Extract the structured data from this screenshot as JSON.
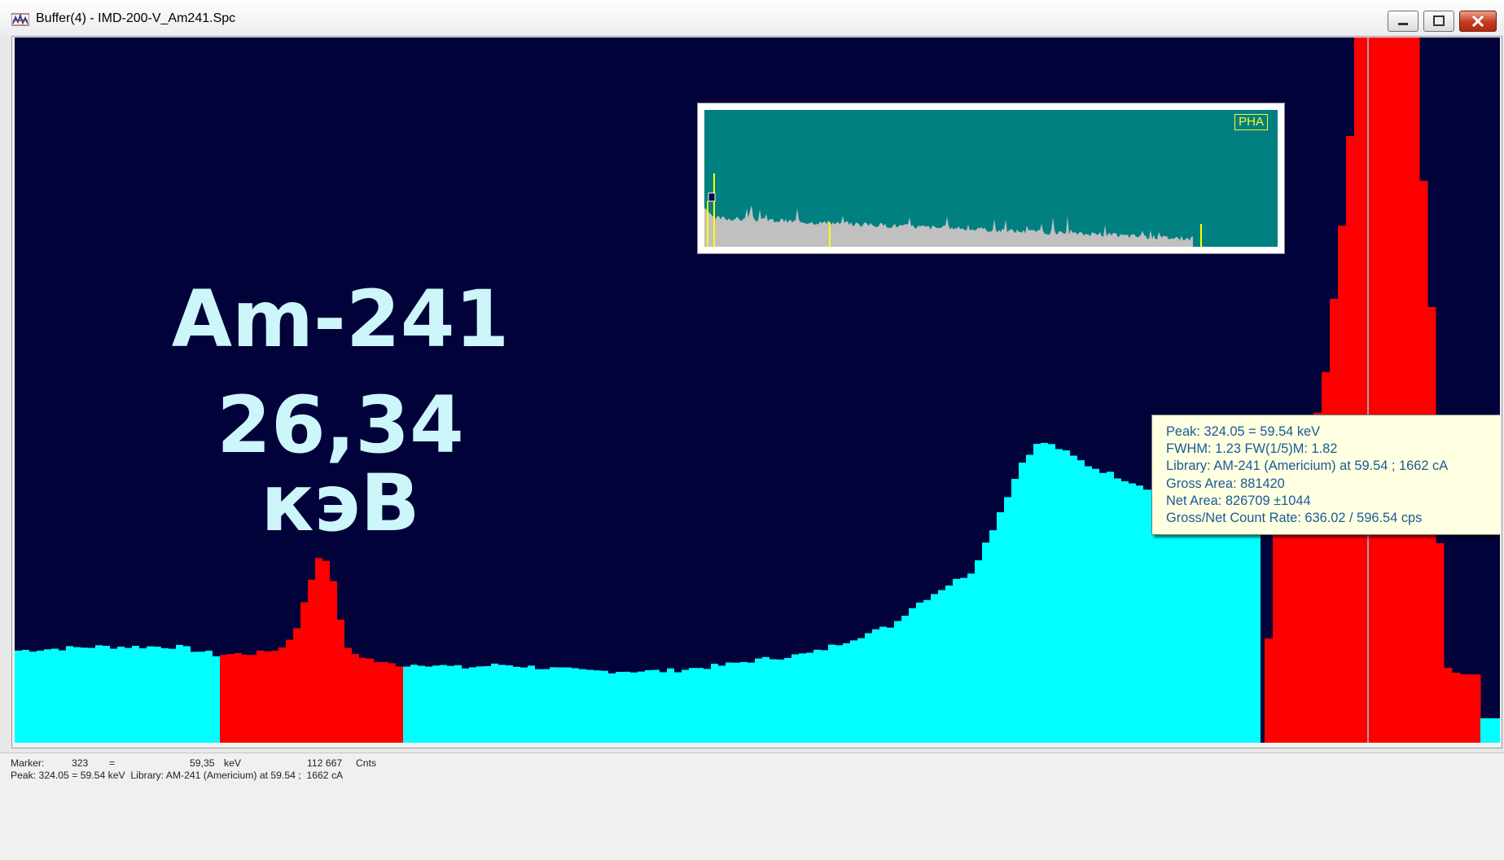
{
  "window": {
    "title": "Buffer(4) - IMD-200-V_Am241.Spc",
    "controls": [
      "minimize-icon",
      "maximize-icon",
      "close-icon"
    ]
  },
  "annotation": {
    "nuclide": "Am-241",
    "energy": "26,34 кэВ"
  },
  "overview": {
    "badge": "PHA",
    "colors": {
      "background": "#008080",
      "spectrum": "#c0c0c0",
      "roi": "#ffff00"
    }
  },
  "peak_info": {
    "lines": [
      "Peak: 324.05 = 59.54 keV",
      "FWHM: 1.23  FW(1/5)M: 1.82",
      "Library: AM-241 (Americium) at 59.54 ;  1662 cA",
      "Gross Area: 881420",
      "Net Area: 826709 ±1044",
      "Gross/Net Count Rate: 636.02 / 596.54 cps"
    ]
  },
  "status": {
    "marker_label": "Marker:",
    "marker_channel": "323",
    "equals": "=",
    "marker_energy": "59,35",
    "energy_unit": "keV",
    "marker_counts": "112 667",
    "counts_unit": "Cnts",
    "peak_line": "Peak: 324.05 = 59.54 keV  Library: AM-241 (Americium) at 59.54 ;  1662 cA"
  },
  "colors": {
    "plot_background": "#02023a",
    "spectrum": "#00ffff",
    "roi": "#ff0000",
    "marker_line": "#a0a0a0",
    "annotation_text": "#ccf6fa"
  }
}
